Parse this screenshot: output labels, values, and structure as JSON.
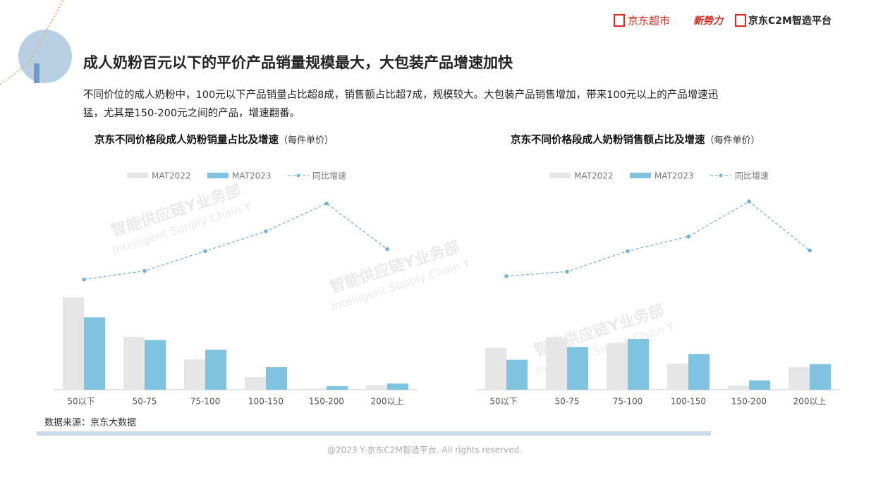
{
  "header": {
    "brands": [
      "京东超市",
      "新势力",
      "京东C2M智造平台"
    ],
    "title": "成人奶粉百元以下的平价产品销量规模最大，大包装产品增速加快",
    "description": [
      "不同价位的成人奶粉中，100元以下产品销量占比超8成，销售额占比超7成，规模较大。大包装产品销售增加，带来100元以上的产品增速迅",
      "猛，尤其是150-200元之间的产品，增速翻番。"
    ]
  },
  "watermark": [
    "智能供应链Y业务部",
    "Intelligent Supply Chain Y"
  ],
  "chart_data": [
    {
      "type": "bar",
      "title": "京东不同价格段成人奶粉销量占比及增速",
      "title_note": "（每件单价）",
      "categories": [
        "50以下",
        "50-75",
        "75-100",
        "100-150",
        "150-200",
        "200以上"
      ],
      "ylim": [
        0,
        50
      ],
      "y2lim": [
        -40,
        120
      ],
      "series": [
        {
          "name": "MAT2022",
          "color": "#e6e6e6",
          "values": [
            47.5,
            27.2,
            15.6,
            6.5,
            0.7,
            2.5
          ]
        },
        {
          "name": "MAT2023",
          "color": "#7fc3e0",
          "values": [
            37.2,
            25.6,
            20.6,
            11.6,
            1.8,
            3.2
          ]
        },
        {
          "name": "同比增速",
          "color": "#6fb3dd",
          "axis": "y2",
          "type": "line",
          "values": [
            -15,
            -2,
            28,
            58,
            100,
            31
          ]
        }
      ]
    },
    {
      "type": "bar",
      "title": "京东不同价格段成人奶粉销售额占比及增速",
      "title_note": "（每件单价）",
      "categories": [
        "50以下",
        "50-75",
        "75-100",
        "100-150",
        "150-200",
        "200以上"
      ],
      "ylim": [
        0,
        50
      ],
      "y2lim": [
        -40,
        120
      ],
      "series": [
        {
          "name": "MAT2022",
          "color": "#e6e6e6",
          "values": [
            21.5,
            27,
            24,
            13.5,
            2.2,
            11.7
          ]
        },
        {
          "name": "MAT2023",
          "color": "#7fc3e0",
          "values": [
            15.4,
            22,
            26.1,
            18.4,
            4.8,
            13.2
          ]
        },
        {
          "name": "同比增速",
          "color": "#6fb3dd",
          "axis": "y2",
          "type": "line",
          "values": [
            -10,
            -3,
            28,
            50,
            103,
            29
          ]
        }
      ]
    }
  ],
  "source": "数据来源：京东大数据",
  "footer": "@2023 Y-京东C2M智造平台. All rights reserved."
}
